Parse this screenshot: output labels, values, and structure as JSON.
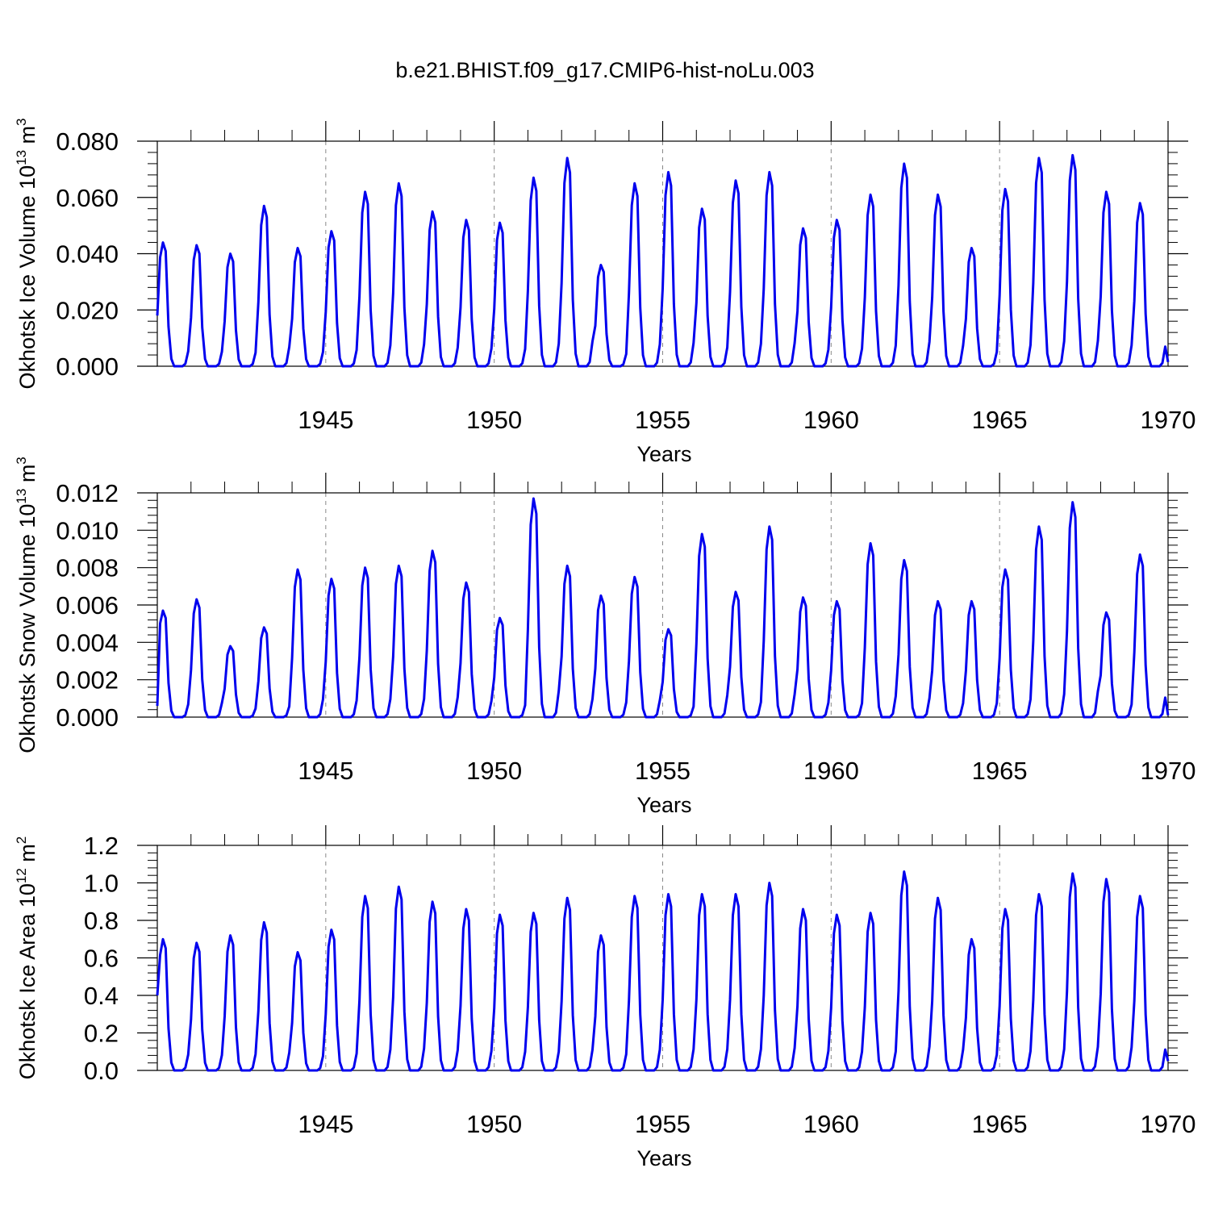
{
  "figure_title": "b.e21.BHIST.f09_g17.CMIP6-hist-noLu.003",
  "colors": {
    "line": "#0000ee",
    "axis": "#000000",
    "grid": "#888888"
  },
  "chart_data": [
    {
      "type": "line",
      "ylabel_main": "Okhotsk Ice Volume 10",
      "ylabel_exp": "13",
      "ylabel_unit": " m",
      "ylabel_unit_exp": "3",
      "xlabel": "Years",
      "xlim": [
        1940,
        1970
      ],
      "ylim": [
        0,
        0.08
      ],
      "yticks": [
        0,
        0.02,
        0.04,
        0.06,
        0.08
      ],
      "ytick_labels": [
        "0.000",
        "0.020",
        "0.040",
        "0.060",
        "0.080"
      ],
      "xticks": [
        1945,
        1950,
        1955,
        1960,
        1965,
        1970
      ],
      "xtick_labels": [
        "1945",
        "1950",
        "1955",
        "1960",
        "1965",
        "1970"
      ],
      "annual_peaks": [
        0.044,
        0.043,
        0.04,
        0.057,
        0.042,
        0.048,
        0.062,
        0.065,
        0.055,
        0.052,
        0.051,
        0.067,
        0.074,
        0.036,
        0.065,
        0.069,
        0.056,
        0.066,
        0.069,
        0.049,
        0.052,
        0.061,
        0.072,
        0.061,
        0.042,
        0.063,
        0.074,
        0.075,
        0.062,
        0.058
      ],
      "start_value": 0.018,
      "end_value": 0.0015
    },
    {
      "type": "line",
      "ylabel_main": "Okhotsk Snow Volume 10",
      "ylabel_exp": "13",
      "ylabel_unit": " m",
      "ylabel_unit_exp": "3",
      "xlabel": "Years",
      "xlim": [
        1940,
        1970
      ],
      "ylim": [
        0,
        0.012
      ],
      "yticks": [
        0,
        0.002,
        0.004,
        0.006,
        0.008,
        0.01,
        0.012
      ],
      "ytick_labels": [
        "0.000",
        "0.002",
        "0.004",
        "0.006",
        "0.008",
        "0.010",
        "0.012"
      ],
      "xticks": [
        1945,
        1950,
        1955,
        1960,
        1965,
        1970
      ],
      "xtick_labels": [
        "1945",
        "1950",
        "1955",
        "1960",
        "1965",
        "1970"
      ],
      "annual_peaks": [
        0.0057,
        0.0063,
        0.0038,
        0.0048,
        0.0079,
        0.0074,
        0.008,
        0.0081,
        0.0089,
        0.0072,
        0.0053,
        0.0117,
        0.0081,
        0.0065,
        0.0075,
        0.0047,
        0.0098,
        0.0067,
        0.0102,
        0.0064,
        0.0062,
        0.0093,
        0.0084,
        0.0062,
        0.0062,
        0.0079,
        0.0102,
        0.0115,
        0.0056,
        0.0087
      ],
      "start_value": 0.0006,
      "end_value": 0.0001
    },
    {
      "type": "line",
      "ylabel_main": "Okhotsk Ice Area 10",
      "ylabel_exp": "12",
      "ylabel_unit": " m",
      "ylabel_unit_exp": "2",
      "xlabel": "Years",
      "xlim": [
        1940,
        1970
      ],
      "ylim": [
        0,
        1.2
      ],
      "yticks": [
        0,
        0.2,
        0.4,
        0.6,
        0.8,
        1.0,
        1.2
      ],
      "ytick_labels": [
        "0.0",
        "0.2",
        "0.4",
        "0.6",
        "0.8",
        "1.0",
        "1.2"
      ],
      "xticks": [
        1945,
        1950,
        1955,
        1960,
        1965,
        1970
      ],
      "xtick_labels": [
        "1945",
        "1950",
        "1955",
        "1960",
        "1965",
        "1970"
      ],
      "annual_peaks": [
        0.7,
        0.68,
        0.72,
        0.79,
        0.63,
        0.75,
        0.93,
        0.98,
        0.9,
        0.86,
        0.83,
        0.84,
        0.92,
        0.72,
        0.93,
        0.94,
        0.94,
        0.94,
        1.0,
        0.86,
        0.83,
        0.84,
        1.06,
        0.92,
        0.7,
        0.86,
        0.94,
        1.05,
        1.02,
        0.93
      ],
      "start_value": 0.4,
      "end_value": 0.05
    }
  ]
}
